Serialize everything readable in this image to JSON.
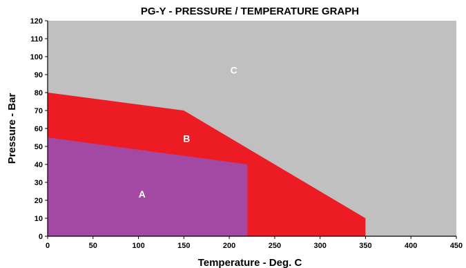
{
  "chart_data": {
    "type": "area",
    "title": "PG-Y -  PRESSURE / TEMPERATURE GRAPH",
    "xlabel": "Temperature - Deg. C",
    "ylabel": "Pressure - Bar",
    "xlim": [
      0,
      450
    ],
    "ylim": [
      0,
      120
    ],
    "x_ticks": [
      0,
      50,
      100,
      150,
      200,
      250,
      300,
      350,
      400,
      450
    ],
    "y_ticks": [
      0,
      10,
      20,
      30,
      40,
      50,
      60,
      70,
      80,
      90,
      100,
      110,
      120
    ],
    "grid": false,
    "regions": [
      {
        "name": "C",
        "color": "#c0c0c0",
        "polygon": [
          [
            0,
            0
          ],
          [
            450,
            0
          ],
          [
            450,
            120
          ],
          [
            0,
            120
          ]
        ],
        "label_at": [
          205,
          92
        ]
      },
      {
        "name": "B",
        "color": "#ed1c24",
        "polygon": [
          [
            0,
            0
          ],
          [
            0,
            80
          ],
          [
            150,
            70
          ],
          [
            350,
            10
          ],
          [
            350,
            0
          ]
        ],
        "label_at": [
          153,
          54
        ]
      },
      {
        "name": "A",
        "color": "#a349a4",
        "polygon": [
          [
            0,
            0
          ],
          [
            0,
            55
          ],
          [
            220,
            40
          ],
          [
            220,
            0
          ]
        ],
        "label_at": [
          104,
          23
        ]
      }
    ]
  }
}
